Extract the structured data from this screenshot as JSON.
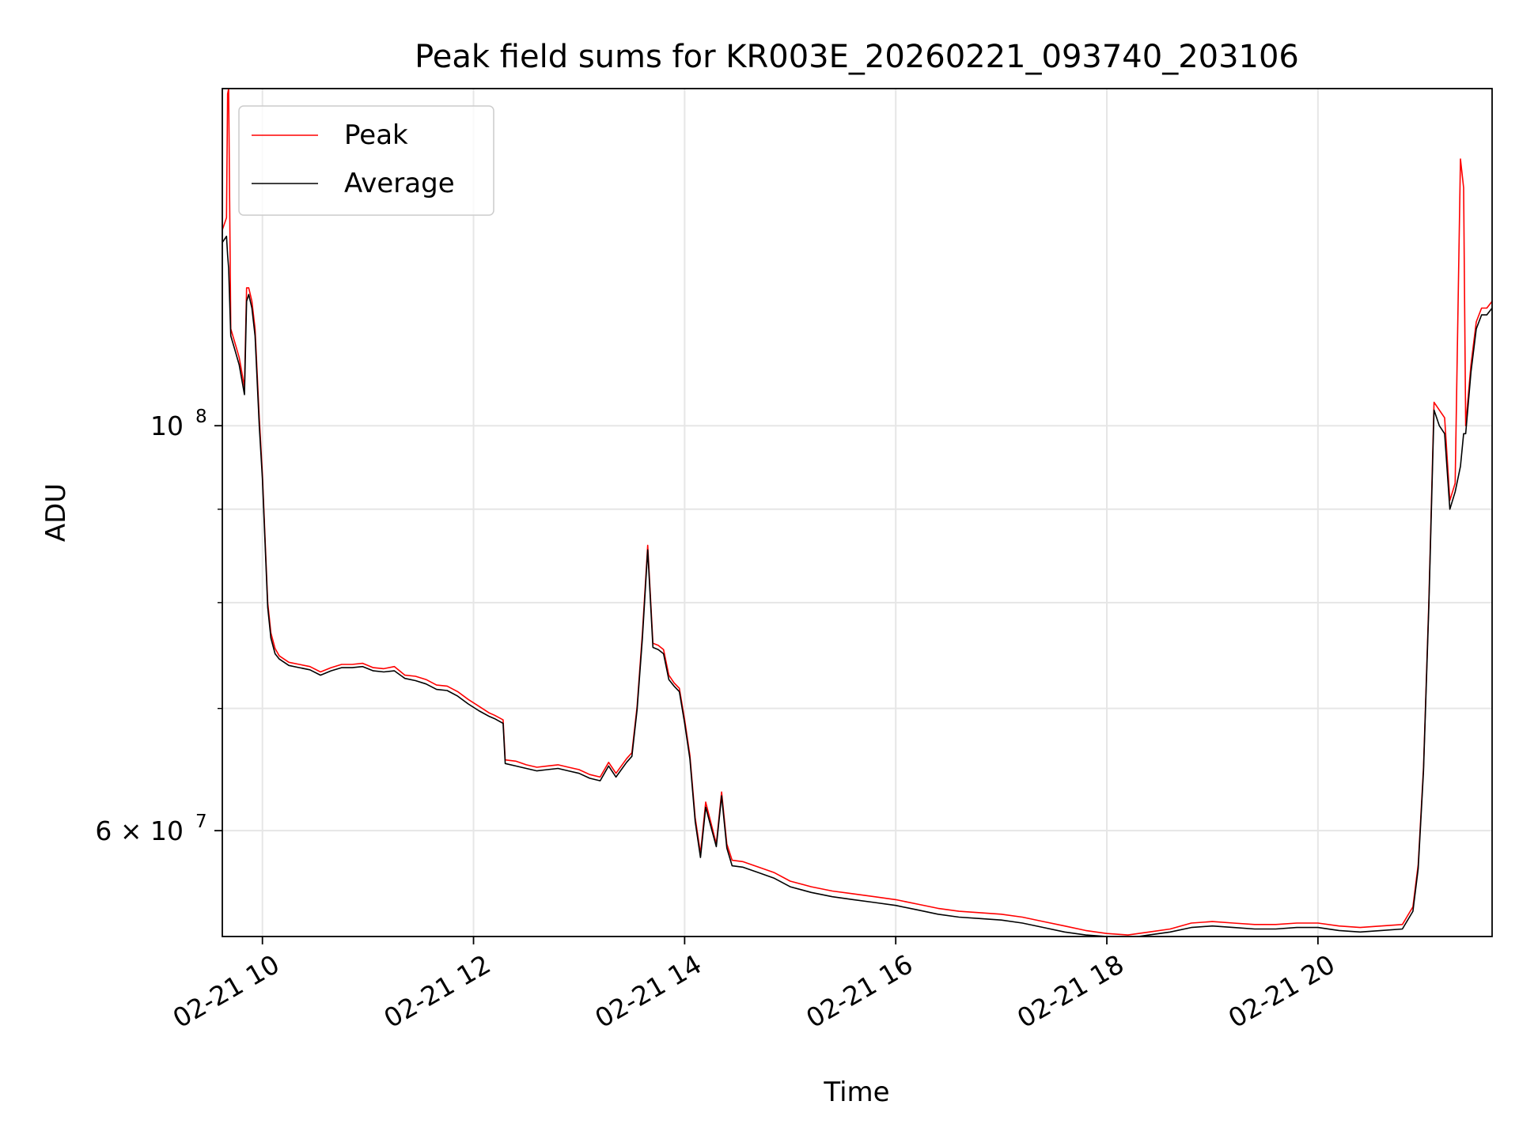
{
  "chart_data": {
    "type": "line",
    "title": "Peak field sums for KR003E_20260221_093740_203106",
    "xlabel": "Time",
    "ylabel": "ADU",
    "yscale": "log",
    "grid": true,
    "legend_loc": "upper left",
    "x_ticks": [
      {
        "value": 10.0,
        "label": "02-21 10"
      },
      {
        "value": 12.0,
        "label": "02-21 12"
      },
      {
        "value": 14.0,
        "label": "02-21 14"
      },
      {
        "value": 16.0,
        "label": "02-21 16"
      },
      {
        "value": 18.0,
        "label": "02-21 18"
      },
      {
        "value": 20.0,
        "label": "02-21 20"
      }
    ],
    "y_ticks": [
      {
        "value": 60000000,
        "label": "6 × 10",
        "sup": "7"
      },
      {
        "value": 100000000,
        "label": "10",
        "sup": "8"
      }
    ],
    "y_minor_ticks": [
      70000000,
      80000000,
      90000000
    ],
    "xlim": [
      9.62,
      21.65
    ],
    "ylim": [
      52500000,
      153000000
    ],
    "series": [
      {
        "name": "Peak",
        "color": "#ff0000",
        "x": [
          9.62,
          9.66,
          9.67,
          9.68,
          9.7,
          9.74,
          9.78,
          9.83,
          9.85,
          9.87,
          9.9,
          9.93,
          9.97,
          10.0,
          10.05,
          10.08,
          10.12,
          10.16,
          10.25,
          10.35,
          10.45,
          10.55,
          10.65,
          10.75,
          10.85,
          10.95,
          11.05,
          11.15,
          11.25,
          11.35,
          11.45,
          11.55,
          11.65,
          11.75,
          11.85,
          11.95,
          12.05,
          12.15,
          12.2,
          12.28,
          12.3,
          12.4,
          12.5,
          12.6,
          12.7,
          12.8,
          12.9,
          13.0,
          13.1,
          13.2,
          13.28,
          13.35,
          13.45,
          13.5,
          13.55,
          13.6,
          13.65,
          13.7,
          13.75,
          13.8,
          13.85,
          13.9,
          13.95,
          14.0,
          14.05,
          14.1,
          14.15,
          14.2,
          14.3,
          14.35,
          14.4,
          14.45,
          14.55,
          14.7,
          14.85,
          15.0,
          15.2,
          15.4,
          15.6,
          15.8,
          16.0,
          16.2,
          16.4,
          16.6,
          16.8,
          17.0,
          17.2,
          17.4,
          17.6,
          17.8,
          18.0,
          18.2,
          18.4,
          18.6,
          18.8,
          19.0,
          19.2,
          19.4,
          19.6,
          19.8,
          20.0,
          20.2,
          20.4,
          20.6,
          20.8,
          20.9,
          20.95,
          21.0,
          21.05,
          21.1,
          21.15,
          21.2,
          21.25,
          21.3,
          21.35,
          21.38,
          21.4,
          21.45,
          21.5,
          21.55,
          21.6,
          21.65
        ],
        "y": [
          128000000,
          130000000,
          152000000,
          153000000,
          113000000,
          111000000,
          109000000,
          105000000,
          119000000,
          119000000,
          117000000,
          113000000,
          101000000,
          94000000,
          80000000,
          77000000,
          75500000,
          74800000,
          74200000,
          74000000,
          73800000,
          73300000,
          73700000,
          74000000,
          74000000,
          74100000,
          73700000,
          73600000,
          73800000,
          73000000,
          72900000,
          72600000,
          72100000,
          72000000,
          71500000,
          70800000,
          70200000,
          69600000,
          69400000,
          69000000,
          65600000,
          65500000,
          65200000,
          65000000,
          65100000,
          65200000,
          65000000,
          64800000,
          64400000,
          64200000,
          65400000,
          64500000,
          65700000,
          66200000,
          70200000,
          77000000,
          86000000,
          76000000,
          75800000,
          75400000,
          73000000,
          72300000,
          71800000,
          69000000,
          66000000,
          61000000,
          58300000,
          62200000,
          59000000,
          63000000,
          59000000,
          57800000,
          57700000,
          57300000,
          56900000,
          56300000,
          55900000,
          55600000,
          55400000,
          55200000,
          55000000,
          54700000,
          54400000,
          54200000,
          54100000,
          54000000,
          53800000,
          53500000,
          53200000,
          52900000,
          52700000,
          52600000,
          52800000,
          53000000,
          53400000,
          53500000,
          53400000,
          53300000,
          53300000,
          53400000,
          53400000,
          53200000,
          53100000,
          53200000,
          53300000,
          54500000,
          57500000,
          65000000,
          80000000,
          103000000,
          102000000,
          101000000,
          91000000,
          93000000,
          140000000,
          135000000,
          100000000,
          108000000,
          114000000,
          116000000,
          116000000,
          117000000
        ]
      },
      {
        "name": "Average",
        "color": "#000000",
        "x": [
          9.62,
          9.66,
          9.67,
          9.68,
          9.7,
          9.74,
          9.78,
          9.83,
          9.85,
          9.87,
          9.9,
          9.93,
          9.97,
          10.0,
          10.05,
          10.08,
          10.12,
          10.16,
          10.25,
          10.35,
          10.45,
          10.55,
          10.65,
          10.75,
          10.85,
          10.95,
          11.05,
          11.15,
          11.25,
          11.35,
          11.45,
          11.55,
          11.65,
          11.75,
          11.85,
          11.95,
          12.05,
          12.15,
          12.2,
          12.28,
          12.3,
          12.4,
          12.5,
          12.6,
          12.7,
          12.8,
          12.9,
          13.0,
          13.1,
          13.2,
          13.28,
          13.35,
          13.45,
          13.5,
          13.55,
          13.6,
          13.65,
          13.7,
          13.75,
          13.8,
          13.85,
          13.9,
          13.95,
          14.0,
          14.05,
          14.1,
          14.15,
          14.2,
          14.3,
          14.35,
          14.4,
          14.45,
          14.55,
          14.7,
          14.85,
          15.0,
          15.2,
          15.4,
          15.6,
          15.8,
          16.0,
          16.2,
          16.4,
          16.6,
          16.8,
          17.0,
          17.2,
          17.4,
          17.6,
          17.8,
          18.0,
          18.2,
          18.4,
          18.6,
          18.8,
          19.0,
          19.2,
          19.4,
          19.6,
          19.8,
          20.0,
          20.2,
          20.4,
          20.6,
          20.8,
          20.9,
          20.95,
          21.0,
          21.05,
          21.1,
          21.15,
          21.2,
          21.25,
          21.3,
          21.35,
          21.38,
          21.4,
          21.45,
          21.5,
          21.55,
          21.6,
          21.65
        ],
        "y": [
          126000000,
          127000000,
          124000000,
          122000000,
          112000000,
          110000000,
          108000000,
          104000000,
          117000000,
          118000000,
          116000000,
          112000000,
          100000000,
          93500000,
          79500000,
          76500000,
          75000000,
          74500000,
          73900000,
          73700000,
          73500000,
          73000000,
          73400000,
          73700000,
          73700000,
          73800000,
          73400000,
          73300000,
          73400000,
          72700000,
          72500000,
          72200000,
          71700000,
          71600000,
          71100000,
          70400000,
          69800000,
          69300000,
          69100000,
          68700000,
          65300000,
          65100000,
          64900000,
          64700000,
          64800000,
          64900000,
          64700000,
          64500000,
          64100000,
          63900000,
          65100000,
          64200000,
          65400000,
          65900000,
          69900000,
          76500000,
          85500000,
          75600000,
          75400000,
          75000000,
          72600000,
          72000000,
          71500000,
          68700000,
          65700000,
          60700000,
          58000000,
          61800000,
          58800000,
          62700000,
          58700000,
          57400000,
          57300000,
          56900000,
          56500000,
          55900000,
          55500000,
          55200000,
          55000000,
          54800000,
          54600000,
          54300000,
          54000000,
          53800000,
          53700000,
          53600000,
          53400000,
          53100000,
          52800000,
          52600000,
          52500000,
          52400000,
          52600000,
          52800000,
          53100000,
          53200000,
          53100000,
          53000000,
          53000000,
          53100000,
          53100000,
          52900000,
          52800000,
          52900000,
          53000000,
          54200000,
          57200000,
          64700000,
          79500000,
          102000000,
          100000000,
          99000000,
          90000000,
          92000000,
          95000000,
          99000000,
          99000000,
          107000000,
          113000000,
          115000000,
          115000000,
          116000000
        ]
      }
    ]
  }
}
